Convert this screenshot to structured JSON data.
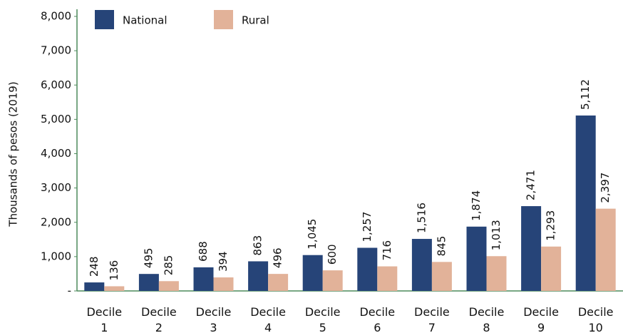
{
  "chart_data": {
    "type": "bar",
    "y_label": "Thousands of pesos (2019)",
    "categories": [
      "Decile 1",
      "Decile 2",
      "Decile 3",
      "Decile 4",
      "Decile 5",
      "Decile 6",
      "Decile 7",
      "Decile 8",
      "Decile 9",
      "Decile 10"
    ],
    "series": [
      {
        "name": "National",
        "color": "#264478",
        "values": [
          248,
          495,
          688,
          863,
          1045,
          1257,
          1516,
          1874,
          2471,
          5112
        ],
        "value_labels": [
          "248",
          "495",
          "688",
          "863",
          "1,045",
          "1,257",
          "1,516",
          "1,874",
          "2,471",
          "5,112"
        ]
      },
      {
        "name": "Rural",
        "color": "#e2b299",
        "values": [
          136,
          285,
          394,
          496,
          600,
          716,
          845,
          1013,
          1293,
          2397
        ],
        "value_labels": [
          "136",
          "285",
          "394",
          "496",
          "600",
          "716",
          "845",
          "1,013",
          "1,293",
          "2,397"
        ]
      }
    ],
    "ylim": [
      0,
      8000
    ],
    "yticks": [
      {
        "value": 0,
        "label": "-"
      },
      {
        "value": 1000,
        "label": "1,000"
      },
      {
        "value": 2000,
        "label": "2,000"
      },
      {
        "value": 3000,
        "label": "3,000"
      },
      {
        "value": 4000,
        "label": "4,000"
      },
      {
        "value": 5000,
        "label": "5,000"
      },
      {
        "value": 6000,
        "label": "6,000"
      },
      {
        "value": 7000,
        "label": "7,000"
      },
      {
        "value": 8000,
        "label": "8,000"
      }
    ],
    "legend": "top-left"
  }
}
